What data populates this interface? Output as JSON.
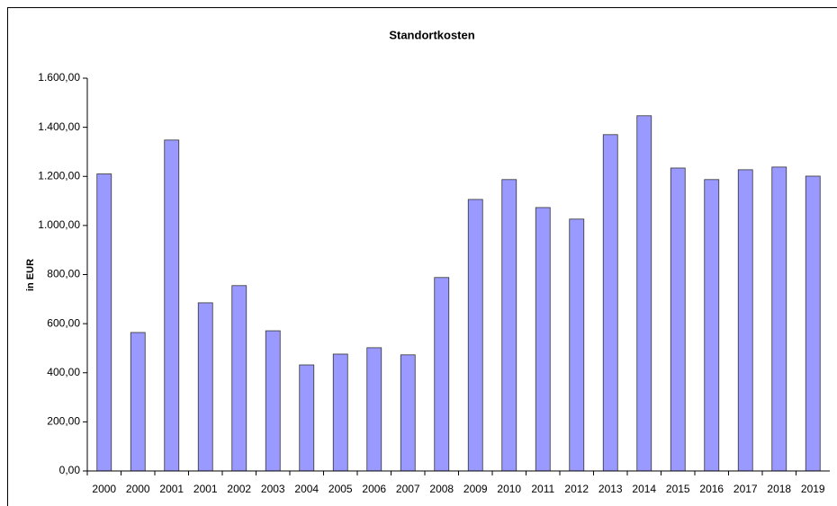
{
  "chart_data": {
    "type": "bar",
    "title": "Standortkosten",
    "y_label": "in EUR",
    "categories": [
      "2000",
      "2000",
      "2001",
      "2001",
      "2002",
      "2003",
      "2004",
      "2005",
      "2006",
      "2007",
      "2008",
      "2009",
      "2010",
      "2011",
      "2012",
      "2013",
      "2014",
      "2015",
      "2016",
      "2017",
      "2018",
      "2019"
    ],
    "values": [
      1210,
      564,
      1348,
      685,
      755,
      571,
      432,
      476,
      502,
      473,
      788,
      1106,
      1187,
      1073,
      1026,
      1370,
      1447,
      1234,
      1187,
      1227,
      1238,
      1201
    ],
    "color": "#9999ff",
    "ylim": [
      0,
      1600
    ],
    "yticks": [
      {
        "value": 0,
        "label": "0,00"
      },
      {
        "value": 200,
        "label": "200,00"
      },
      {
        "value": 400,
        "label": "400,00"
      },
      {
        "value": 600,
        "label": "600,00"
      },
      {
        "value": 800,
        "label": "800,00"
      },
      {
        "value": 1000,
        "label": "1.000,00"
      },
      {
        "value": 1200,
        "label": "1.200,00"
      },
      {
        "value": 1400,
        "label": "1.400,00"
      },
      {
        "value": 1600,
        "label": "1.600,00"
      }
    ],
    "grid": false
  }
}
